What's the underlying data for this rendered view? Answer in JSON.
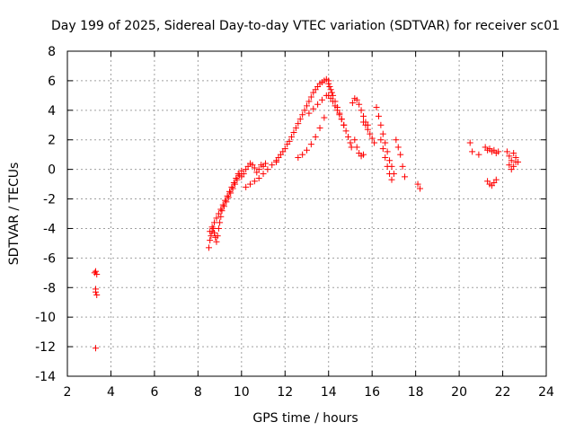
{
  "chart_data": {
    "type": "scatter",
    "title": "Day 199 of 2025, Sidereal Day-to-day VTEC variation (SDTVAR) for receiver sc01",
    "xlabel": "GPS time / hours",
    "ylabel": "SDTVAR / TECUs",
    "xlim": [
      2,
      24
    ],
    "ylim": [
      -14,
      8
    ],
    "xticks": [
      "2",
      "4",
      "6",
      "8",
      "10",
      "12",
      "14",
      "16",
      "18",
      "20",
      "22",
      "24"
    ],
    "yticks": [
      "8",
      "6",
      "4",
      "2",
      "0",
      "-2",
      "-4",
      "-6",
      "-8",
      "-10",
      "-12",
      "-14"
    ],
    "grid": true,
    "marker": "+",
    "color": "#ff0000",
    "series": [
      {
        "name": "SDTVAR",
        "x": [
          3.25,
          3.3,
          3.35,
          3.3,
          3.3,
          3.35,
          3.3,
          8.5,
          8.55,
          8.6,
          8.65,
          8.7,
          8.75,
          8.8,
          8.85,
          8.9,
          8.95,
          9.0,
          9.05,
          9.1,
          9.2,
          9.3,
          9.4,
          9.5,
          9.6,
          9.7,
          9.8,
          9.9,
          10.0,
          8.55,
          8.65,
          8.75,
          8.85,
          8.95,
          9.05,
          9.15,
          9.25,
          9.35,
          9.45,
          9.55,
          9.65,
          9.75,
          9.85,
          10.0,
          10.1,
          10.2,
          10.3,
          10.4,
          10.5,
          10.6,
          10.7,
          10.8,
          10.9,
          11.0,
          11.1,
          10.2,
          10.4,
          10.6,
          10.8,
          11.0,
          11.2,
          11.4,
          11.6,
          11.6,
          11.7,
          11.8,
          11.9,
          12.0,
          12.1,
          12.2,
          12.3,
          12.4,
          12.5,
          12.6,
          12.7,
          12.8,
          12.9,
          13.0,
          13.1,
          13.2,
          13.3,
          13.4,
          13.5,
          13.6,
          13.7,
          13.8,
          13.9,
          14.0,
          12.6,
          12.8,
          13.0,
          13.2,
          13.4,
          13.6,
          13.8,
          13.1,
          13.3,
          13.5,
          13.7,
          13.9,
          14.0,
          14.05,
          14.1,
          14.15,
          14.2,
          14.3,
          14.4,
          14.5,
          14.6,
          14.7,
          14.8,
          14.9,
          15.0,
          15.05,
          14.0,
          14.1,
          14.2,
          14.3,
          14.4,
          14.5,
          14.6,
          14.7,
          15.1,
          15.2,
          15.3,
          15.4,
          15.5,
          15.6,
          15.7,
          15.8,
          15.2,
          15.3,
          15.4,
          15.5,
          15.6,
          15.6,
          15.7,
          15.8,
          15.9,
          16.0,
          16.1,
          16.2,
          16.3,
          16.4,
          16.5,
          16.6,
          16.7,
          16.8,
          16.9,
          17.0,
          16.4,
          16.5,
          16.6,
          16.7,
          16.8,
          16.9,
          17.1,
          17.2,
          17.3,
          17.4,
          17.5,
          18.1,
          18.2,
          20.5,
          20.6,
          20.9,
          21.2,
          21.3,
          21.4,
          21.5,
          21.6,
          21.7,
          21.8,
          21.3,
          21.4,
          21.5,
          21.6,
          21.7,
          22.2,
          22.3,
          22.4,
          22.5,
          22.6,
          22.7,
          22.3,
          22.4,
          22.5,
          22.6
        ],
        "y": [
          -7.0,
          -6.9,
          -7.1,
          -8.1,
          -8.3,
          -8.5,
          -12.1,
          -5.3,
          -4.8,
          -4.5,
          -4.2,
          -4.0,
          -4.3,
          -4.6,
          -4.9,
          -4.5,
          -4.0,
          -3.6,
          -3.2,
          -2.8,
          -2.5,
          -2.2,
          -1.9,
          -1.6,
          -1.3,
          -1.0,
          -0.7,
          -0.4,
          -0.1,
          -4.2,
          -3.9,
          -3.6,
          -3.3,
          -3.0,
          -2.7,
          -2.4,
          -2.1,
          -1.8,
          -1.5,
          -1.2,
          -0.9,
          -0.6,
          -0.3,
          -0.5,
          -0.3,
          0.0,
          0.2,
          0.4,
          0.3,
          0.1,
          -0.2,
          0.0,
          0.3,
          0.2,
          0.4,
          -1.2,
          -1.0,
          -0.8,
          -0.6,
          -0.3,
          0.0,
          0.3,
          0.5,
          0.6,
          0.8,
          1.0,
          1.2,
          1.4,
          1.7,
          1.9,
          2.2,
          2.5,
          2.8,
          3.1,
          3.4,
          3.7,
          4.0,
          4.3,
          4.6,
          4.9,
          5.2,
          5.4,
          5.6,
          5.8,
          5.9,
          6.0,
          6.1,
          6.0,
          0.8,
          1.0,
          1.3,
          1.7,
          2.2,
          2.8,
          3.5,
          3.8,
          4.1,
          4.4,
          4.7,
          5.0,
          5.8,
          5.6,
          5.4,
          5.2,
          5.0,
          4.6,
          4.2,
          3.8,
          3.4,
          3.0,
          2.6,
          2.2,
          1.8,
          1.5,
          5.0,
          4.8,
          4.6,
          4.3,
          4.0,
          3.7,
          3.4,
          3.0,
          4.5,
          4.8,
          4.7,
          4.4,
          4.0,
          3.6,
          3.2,
          3.0,
          2.0,
          1.5,
          1.1,
          0.9,
          1.0,
          3.2,
          3.0,
          2.7,
          2.4,
          2.1,
          1.8,
          4.2,
          3.6,
          3.0,
          2.4,
          1.8,
          1.2,
          0.6,
          0.2,
          -0.3,
          2.0,
          1.4,
          0.8,
          0.2,
          -0.3,
          -0.7,
          2.0,
          1.5,
          1.0,
          0.2,
          -0.5,
          -1.0,
          -1.3,
          1.8,
          1.2,
          1.0,
          1.5,
          1.3,
          1.4,
          1.2,
          1.3,
          1.1,
          1.2,
          -0.8,
          -1.0,
          -1.1,
          -0.9,
          -0.7,
          1.2,
          0.9,
          0.6,
          1.1,
          0.8,
          0.5,
          0.3,
          0.0,
          0.2,
          0.5
        ]
      }
    ]
  }
}
